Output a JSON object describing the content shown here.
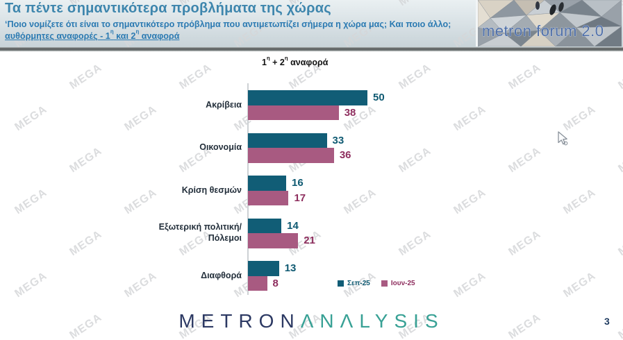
{
  "header": {
    "title": "Τα πέντε σημαντικότερα προβλήματα της χώρας",
    "subtitle": "‘Ποιο νομίζετε ότι είναι το σημαντικότερο πρόβλημα που αντιμετωπίζει σήμερα η χώρα μας; Και ποιο άλλο;",
    "note_full": "αυθόρμητες αναφορές - 1η και 2η αναφορά",
    "note_parts": {
      "pre": "αυθόρμητες αναφορές - 1",
      "sup1": "η",
      "mid": " και 2",
      "sup2": "η",
      "post": " αναφορά"
    },
    "logo_text": "metron forum 2.0"
  },
  "watermark_text": "MEGA",
  "chart_data": {
    "type": "bar",
    "orientation": "horizontal",
    "title": "1η + 2η αναφορά",
    "title_parts": {
      "pre": "1",
      "sup1": "η",
      "mid": " + 2",
      "sup2": "η",
      "post": " αναφορά"
    },
    "categories": [
      "Ακρίβεια",
      "Οικονομία",
      "Κρίση θεσμών",
      "Εξωτερική πολιτική/Πόλεμοι",
      "Διαφθορά"
    ],
    "series": [
      {
        "name": "Σεπ-25",
        "color": "#115d76",
        "label_color": "#0f5a72",
        "values": [
          50,
          33,
          16,
          14,
          13
        ]
      },
      {
        "name": "Ιουν-25",
        "color": "#a85a81",
        "label_color": "#8e2e5e",
        "values": [
          38,
          36,
          17,
          21,
          8
        ]
      }
    ],
    "xlim": [
      0,
      58
    ],
    "grid": false,
    "value_labels": true,
    "legend_position": "bottom-right"
  },
  "footer": {
    "brand_primary": "METRON",
    "brand_secondary": "ΛNΛLYSIS",
    "brand_colors": {
      "primary": "#2c3963",
      "secondary": "#38a195"
    },
    "page_number": "3"
  }
}
